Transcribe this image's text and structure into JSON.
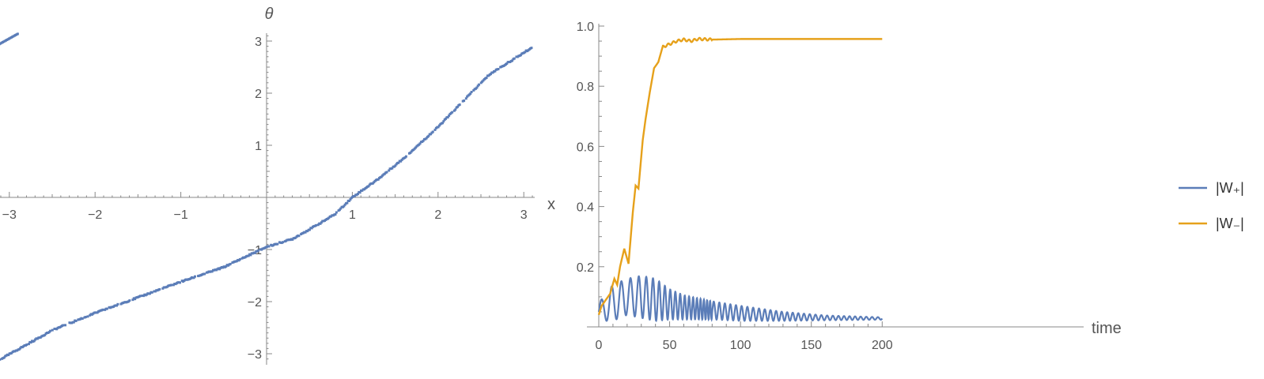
{
  "colors": {
    "axis": "#888888",
    "points": "#5B7DB8",
    "w_plus": "#5B7DB8",
    "w_minus": "#E6A11B"
  },
  "chart_data": [
    {
      "type": "scatter",
      "xlabel": "x",
      "ylabel": "θ",
      "xlim": [
        -3.14,
        3.14
      ],
      "ylim": [
        -3.14,
        3.14
      ],
      "grid": false,
      "x_ticks": [
        -3,
        -2,
        -1,
        1,
        2,
        3
      ],
      "x_tick_labels": [
        "−3",
        "−2",
        "−1",
        "1",
        "2",
        "3"
      ],
      "y_ticks": [
        -3,
        -2,
        -1,
        1,
        2,
        3
      ],
      "y_tick_labels": [
        "−3",
        "−2",
        "−1",
        "1",
        "2",
        "3"
      ],
      "curve": {
        "x": [
          -3.14,
          -2.5,
          -2.0,
          -1.5,
          -1.0,
          -0.5,
          0.0,
          0.3,
          0.6,
          0.8,
          1.0,
          1.3,
          1.6,
          2.0,
          2.3,
          2.6,
          3.1
        ],
        "y": [
          -3.14,
          -2.55,
          -2.22,
          -1.92,
          -1.62,
          -1.34,
          -0.95,
          -0.8,
          -0.52,
          -0.32,
          0.0,
          0.35,
          0.75,
          1.35,
          1.86,
          2.36,
          2.88
        ]
      },
      "wrapped_segment": {
        "x": [
          -3.14,
          -2.9
        ],
        "y": [
          2.92,
          3.14
        ]
      }
    },
    {
      "type": "line",
      "xlabel": "time",
      "ylabel": "",
      "xlim": [
        0,
        200
      ],
      "ylim": [
        0,
        1.0
      ],
      "grid": false,
      "legend": "right",
      "x_ticks": [
        0,
        50,
        100,
        150,
        200
      ],
      "x_tick_labels": [
        "0",
        "50",
        "100",
        "150",
        "200"
      ],
      "y_ticks": [
        0.2,
        0.4,
        0.6,
        0.8,
        1.0
      ],
      "y_tick_labels": [
        "0.2",
        "0.4",
        "0.6",
        "0.8",
        "1.0"
      ],
      "series": [
        {
          "name": "|W₊|",
          "envelope": {
            "t": [
              0,
              10,
              20,
              30,
              40,
              50,
              60,
              80,
              100,
              130,
              160,
              200
            ],
            "amplitude": [
              0.03,
              0.06,
              0.06,
              0.07,
              0.07,
              0.05,
              0.04,
              0.03,
              0.025,
              0.015,
              0.008,
              0.004
            ],
            "center": [
              0.05,
              0.08,
              0.1,
              0.1,
              0.09,
              0.075,
              0.065,
              0.055,
              0.045,
              0.035,
              0.03,
              0.028
            ]
          }
        },
        {
          "name": "|W₋|",
          "t": [
            0,
            2,
            5,
            8,
            11,
            13,
            15,
            18,
            21,
            24,
            26,
            28,
            31,
            33,
            36,
            39,
            42,
            45,
            50,
            55,
            60,
            65,
            70,
            80,
            100,
            150,
            200
          ],
          "values": [
            0.04,
            0.07,
            0.09,
            0.11,
            0.16,
            0.14,
            0.2,
            0.26,
            0.21,
            0.38,
            0.47,
            0.46,
            0.62,
            0.69,
            0.78,
            0.86,
            0.88,
            0.93,
            0.94,
            0.95,
            0.955,
            0.95,
            0.957,
            0.955,
            0.957,
            0.957,
            0.957
          ]
        }
      ]
    }
  ]
}
